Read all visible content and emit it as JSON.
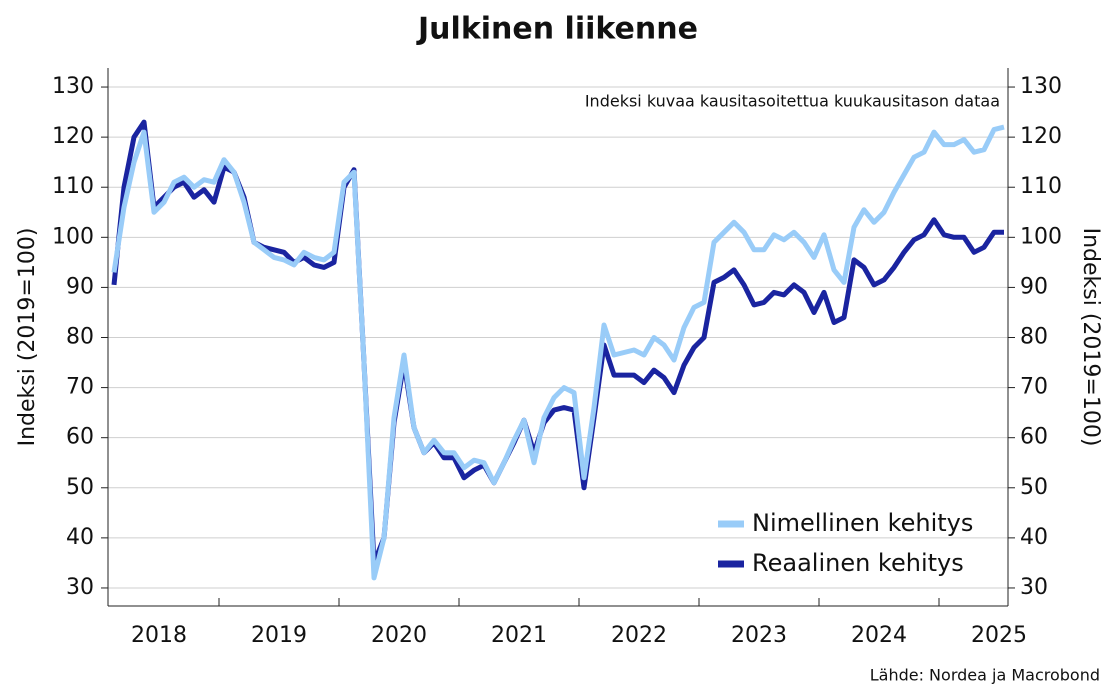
{
  "chart_data": {
    "type": "line",
    "title": "Julkinen liikenne",
    "annotation": "Indeksi kuvaa kausitasoitettua kuukausitason dataa",
    "source": "Lähde: Nordea ja Macrobond",
    "ylabel": "Indeksi (2019=100)",
    "y2label": "Indeksi (2019=100)",
    "x": [
      2018.125,
      2018.208,
      2018.292,
      2018.375,
      2018.458,
      2018.542,
      2018.625,
      2018.708,
      2018.792,
      2018.875,
      2018.958,
      2019.042,
      2019.125,
      2019.208,
      2019.292,
      2019.375,
      2019.458,
      2019.542,
      2019.625,
      2019.708,
      2019.792,
      2019.875,
      2019.958,
      2020.042,
      2020.125,
      2020.208,
      2020.292,
      2020.375,
      2020.458,
      2020.542,
      2020.625,
      2020.708,
      2020.792,
      2020.875,
      2020.958,
      2021.042,
      2021.125,
      2021.208,
      2021.292,
      2021.375,
      2021.458,
      2021.542,
      2021.625,
      2021.708,
      2021.792,
      2021.875,
      2021.958,
      2022.042,
      2022.125,
      2022.208,
      2022.292,
      2022.375,
      2022.458,
      2022.542,
      2022.625,
      2022.708,
      2022.792,
      2022.875,
      2022.958,
      2023.042,
      2023.125,
      2023.208,
      2023.292,
      2023.375,
      2023.458,
      2023.542,
      2023.625,
      2023.708,
      2023.792,
      2023.875,
      2023.958,
      2024.042,
      2024.125,
      2024.208,
      2024.292,
      2024.375,
      2024.458,
      2024.542,
      2024.625,
      2024.708,
      2024.792,
      2024.875,
      2024.958,
      2025.042,
      2025.125,
      2025.208,
      2025.292,
      2025.375,
      2025.458,
      2025.542
    ],
    "series": [
      {
        "name": "Nimellinen kehitys",
        "color": "#99ccf8",
        "values": [
          93,
          106,
          115,
          121,
          105,
          107,
          111,
          112,
          110,
          111.5,
          111,
          115.5,
          113,
          107,
          99,
          97.5,
          96,
          95.5,
          94.5,
          97,
          96,
          95.5,
          97,
          111,
          113,
          75,
          32,
          40,
          64,
          76.5,
          62,
          57,
          59.5,
          57,
          57,
          54,
          55.5,
          55,
          51,
          55,
          59.5,
          63.5,
          55,
          64,
          68,
          70,
          69,
          52,
          66,
          82.5,
          76.5,
          77,
          77.5,
          76.5,
          80,
          78.5,
          75.5,
          82,
          86,
          87,
          99,
          101,
          103,
          101,
          97.5,
          97.5,
          100.5,
          99.5,
          101,
          99,
          96,
          100.5,
          93.5,
          91,
          102,
          105.5,
          103,
          105,
          109,
          112.5,
          116,
          117,
          121,
          118.5,
          118.5,
          119.5,
          117,
          117.5,
          121.5,
          122
        ]
      },
      {
        "name": "Reaalinen kehitys",
        "color": "#1a24a0",
        "values": [
          90.5,
          110,
          120,
          123,
          106,
          108,
          110,
          111,
          108,
          109.5,
          107,
          114,
          113,
          108,
          99,
          98,
          97.5,
          97,
          95,
          96,
          94.5,
          94,
          95,
          110,
          113.5,
          75,
          35,
          40,
          63,
          75,
          62,
          57,
          59,
          56,
          56,
          52,
          53.5,
          54.5,
          51,
          55,
          59,
          63.5,
          57,
          63,
          65.5,
          66,
          65.5,
          50,
          64,
          78.5,
          72.5,
          72.5,
          72.5,
          71,
          73.5,
          72,
          69,
          74.5,
          78,
          80,
          91,
          92,
          93.5,
          90.5,
          86.5,
          87,
          89,
          88.5,
          90.5,
          89,
          85,
          89,
          83,
          84,
          95.5,
          94,
          90.5,
          91.5,
          94,
          97,
          99.5,
          100.5,
          103.5,
          100.5,
          100,
          100,
          97,
          98,
          101,
          101
        ]
      }
    ],
    "xlim": [
      2018.075,
      2025.575
    ],
    "xticks": [
      {
        "value": 2018.5,
        "label": "2018"
      },
      {
        "value": 2019.5,
        "label": "2019"
      },
      {
        "value": 2020.5,
        "label": "2020"
      },
      {
        "value": 2021.5,
        "label": "2021"
      },
      {
        "value": 2022.5,
        "label": "2022"
      },
      {
        "value": 2023.5,
        "label": "2023"
      },
      {
        "value": 2024.5,
        "label": "2024"
      },
      {
        "value": 2025.5,
        "label": "2025"
      }
    ],
    "ylim": [
      26.4,
      133.8
    ],
    "yticks": [
      30,
      40,
      50,
      60,
      70,
      80,
      90,
      100,
      110,
      120,
      130
    ],
    "y2lim": [
      26.4,
      133.8
    ],
    "y2ticks": [
      30,
      40,
      50,
      60,
      70,
      80,
      90,
      100,
      110,
      120,
      130
    ],
    "grid": true,
    "legend": "lower right"
  }
}
